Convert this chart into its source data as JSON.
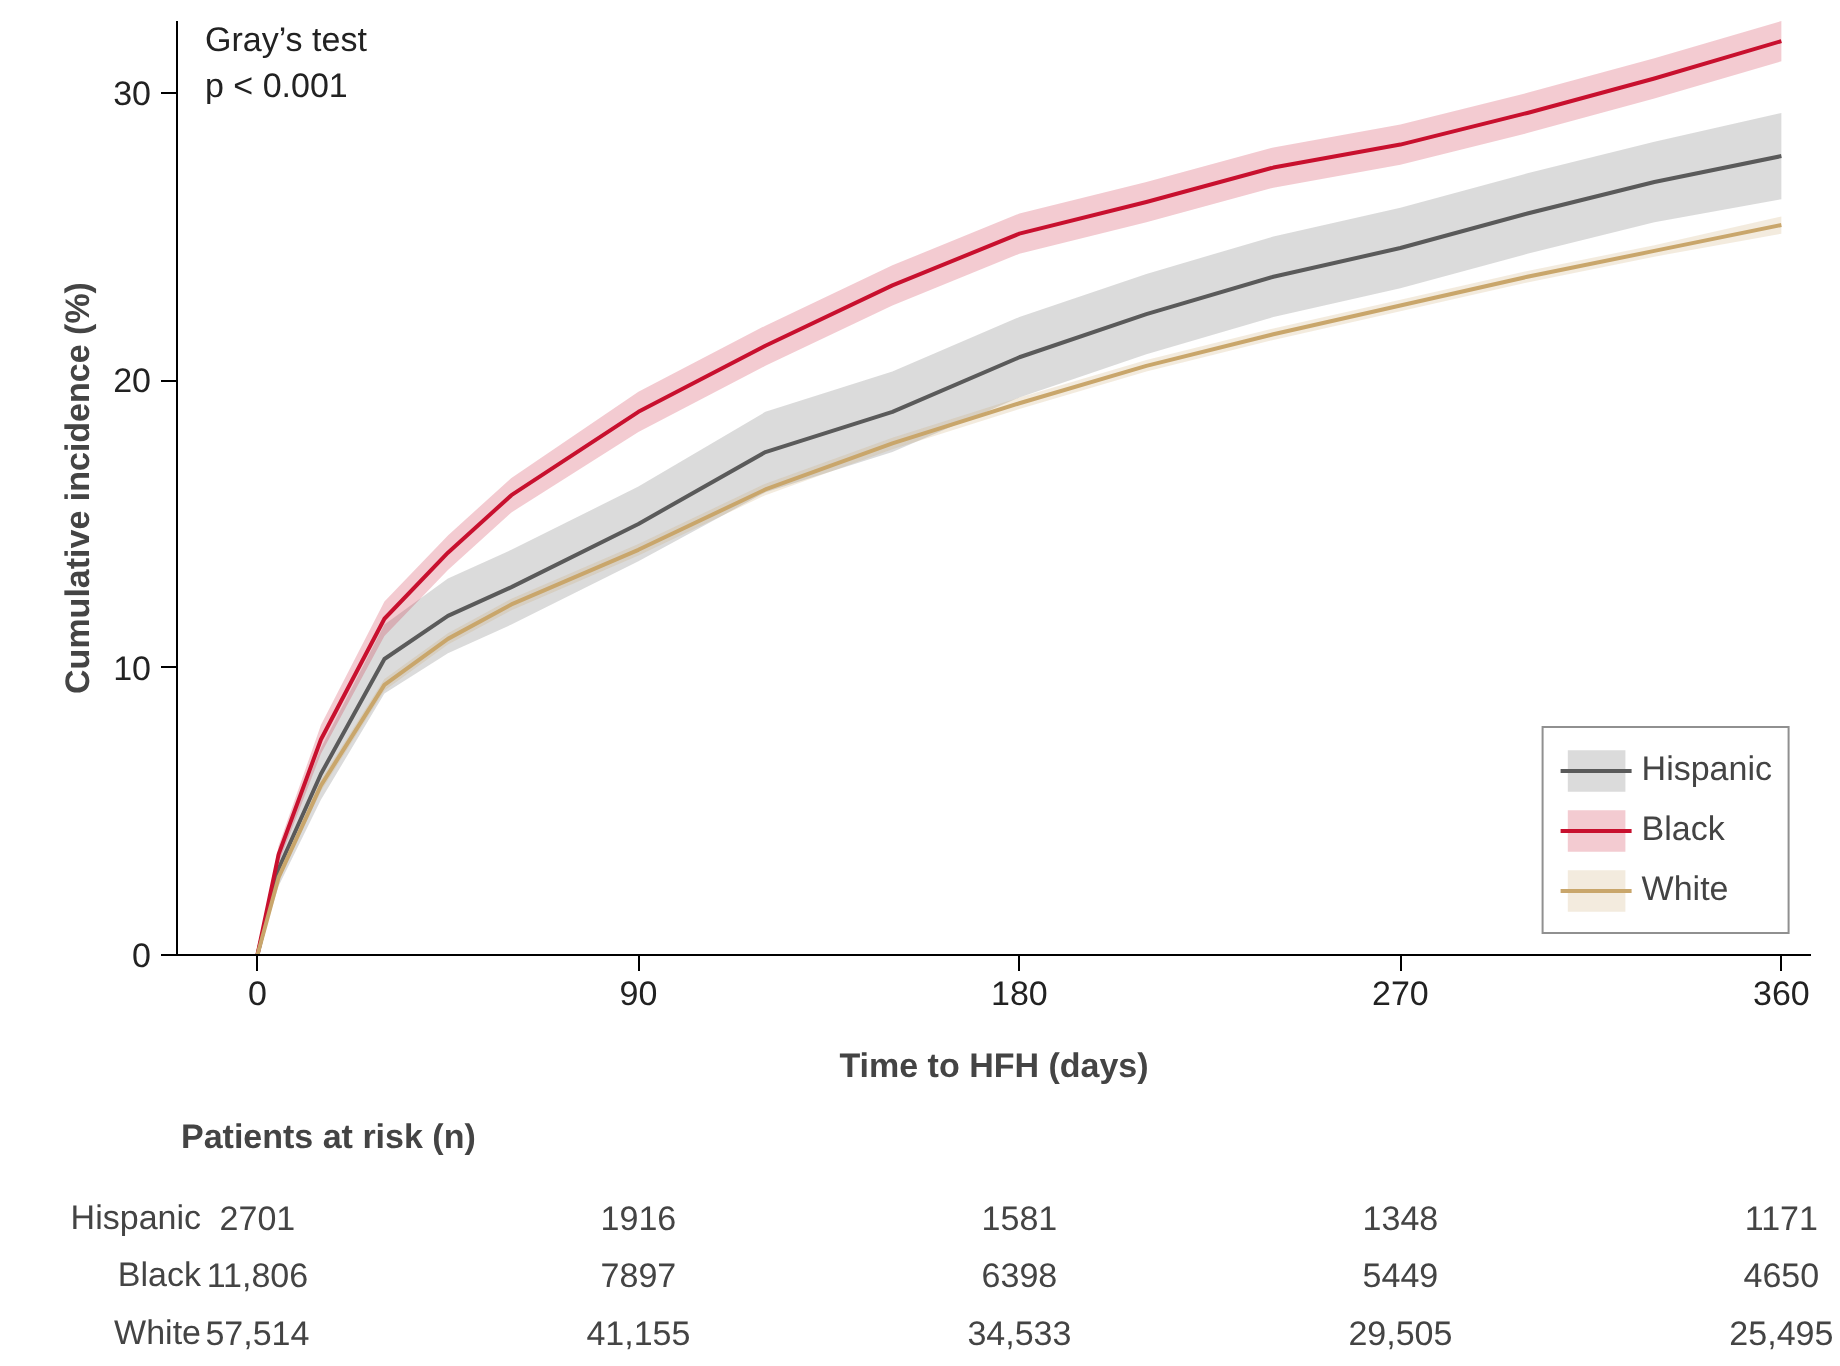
{
  "chart_data": {
    "type": "line",
    "xlabel": "Time to HFH (days)",
    "ylabel": "Cumulative incidence (%)",
    "x": [
      0,
      5,
      15,
      30,
      45,
      60,
      90,
      120,
      150,
      180,
      210,
      240,
      270,
      300,
      330,
      360
    ],
    "series": [
      {
        "name": "Hispanic",
        "color": "#5a5a5a",
        "values": [
          0,
          3.0,
          6.3,
          10.3,
          11.8,
          12.8,
          15.0,
          17.5,
          18.9,
          20.8,
          22.3,
          23.6,
          24.6,
          25.8,
          26.9,
          27.8
        ],
        "lower": [
          0,
          2.4,
          5.4,
          9.1,
          10.5,
          11.5,
          13.7,
          16.1,
          17.5,
          19.4,
          20.9,
          22.2,
          23.2,
          24.4,
          25.5,
          26.3
        ],
        "upper": [
          0,
          3.6,
          7.2,
          11.5,
          13.1,
          14.1,
          16.3,
          18.9,
          20.3,
          22.2,
          23.7,
          25.0,
          26.0,
          27.2,
          28.3,
          29.3
        ]
      },
      {
        "name": "Black",
        "color": "#c8102e",
        "values": [
          0,
          3.5,
          7.5,
          11.7,
          14.0,
          16.0,
          18.9,
          21.2,
          23.3,
          25.1,
          26.2,
          27.4,
          28.2,
          29.3,
          30.5,
          31.8
        ],
        "lower": [
          0,
          3.2,
          7.0,
          11.1,
          13.4,
          15.4,
          18.2,
          20.5,
          22.6,
          24.4,
          25.5,
          26.7,
          27.5,
          28.6,
          29.8,
          31.1
        ],
        "upper": [
          0,
          3.8,
          8.0,
          12.3,
          14.6,
          16.6,
          19.6,
          21.9,
          24.0,
          25.8,
          26.9,
          28.1,
          28.9,
          30.0,
          31.2,
          32.5
        ]
      },
      {
        "name": "White",
        "color": "#c9a66b",
        "values": [
          0,
          2.7,
          5.9,
          9.4,
          11.0,
          12.2,
          14.1,
          16.2,
          17.8,
          19.2,
          20.5,
          21.6,
          22.6,
          23.6,
          24.5,
          25.4
        ],
        "lower": [
          0,
          2.6,
          5.7,
          9.2,
          10.8,
          12.0,
          13.9,
          16.0,
          17.6,
          19.0,
          20.3,
          21.4,
          22.4,
          23.4,
          24.3,
          25.1
        ],
        "upper": [
          0,
          2.8,
          6.1,
          9.6,
          11.2,
          12.4,
          14.3,
          16.4,
          18.0,
          19.4,
          20.7,
          21.8,
          22.8,
          23.8,
          24.7,
          25.7
        ]
      }
    ],
    "xlim": [
      -19,
      367
    ],
    "ylim": [
      0,
      32.5
    ],
    "xticks": [
      0,
      90,
      180,
      270,
      360
    ],
    "yticks": [
      0,
      10,
      20,
      30
    ],
    "grid": false,
    "legend": "bottom right",
    "annotations": [
      "Gray’s test\np < 0.001",
      "Patients at risk (n)",
      "Hispanic",
      "2701",
      "1916",
      "1581",
      "1348",
      "1171",
      "Black",
      "11,806",
      "7897",
      "6398",
      "5449",
      "4650",
      "White",
      "57,514",
      "41,155",
      "34,533",
      "29,505",
      "25,495"
    ]
  }
}
